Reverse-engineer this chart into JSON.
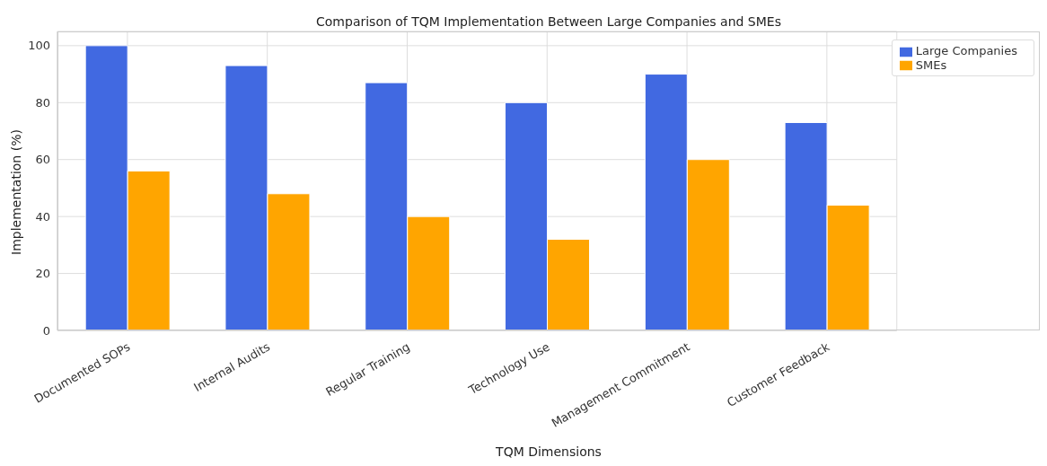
{
  "chart_data": {
    "type": "bar",
    "title": "Comparison of TQM Implementation Between Large Companies and SMEs",
    "xlabel": "TQM Dimensions",
    "ylabel": "Implementation (%)",
    "categories": [
      "Documented SOPs",
      "Internal Audits",
      "Regular Training",
      "Technology Use",
      "Management Commitment",
      "Customer Feedback"
    ],
    "series": [
      {
        "name": "Large Companies",
        "color": "#4169e1",
        "values": [
          100,
          93,
          87,
          80,
          90,
          73
        ]
      },
      {
        "name": "SMEs",
        "color": "#ffa500",
        "values": [
          56,
          48,
          40,
          32,
          60,
          44
        ]
      }
    ],
    "ylim": [
      0,
      105
    ],
    "yticks": [
      0,
      20,
      40,
      60,
      80,
      100
    ],
    "grid": true,
    "legend": "top right"
  }
}
